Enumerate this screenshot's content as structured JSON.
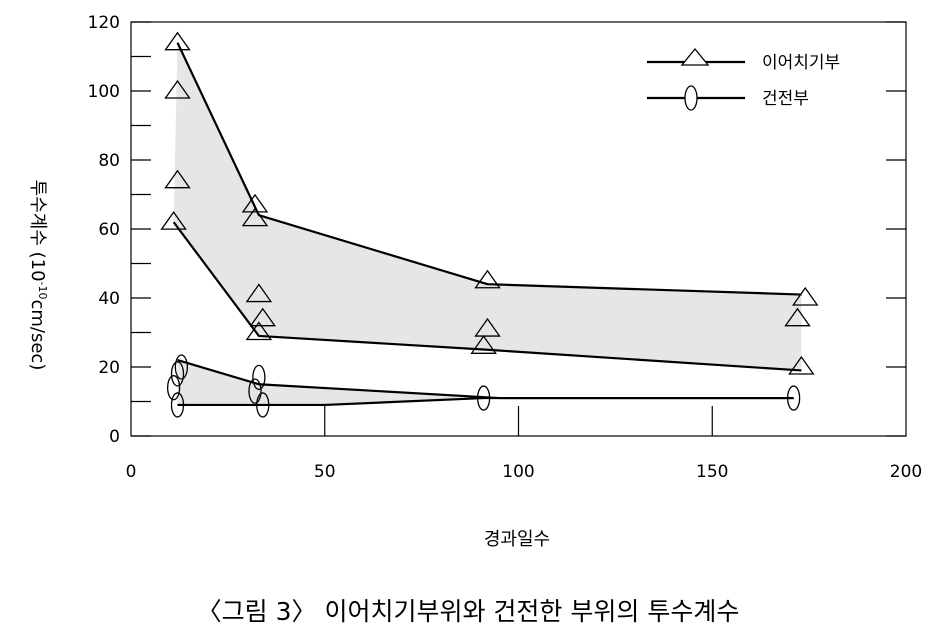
{
  "chart_data": {
    "type": "line",
    "title": "",
    "xlabel": "경과일수",
    "ylabel": "투수계수 (10⁻¹⁰cm/sec)",
    "ylabel_main": "투수계수 (10",
    "ylabel_exp": "-10",
    "ylabel_unit": "cm/sec)",
    "xlim": [
      0,
      200
    ],
    "ylim": [
      0,
      120
    ],
    "xticks": [
      0,
      50,
      100,
      150,
      200
    ],
    "yticks": [
      0,
      20,
      40,
      60,
      80,
      100,
      120
    ],
    "y_minor_ticks": [
      10,
      30,
      50,
      70,
      90,
      110
    ],
    "grid": false,
    "legend_position": "top-right",
    "shaded_band_color": "#e6e6e6",
    "line_color": "#000000",
    "series": [
      {
        "name": "이어치기부",
        "marker": "triangle",
        "points": [
          {
            "x": 12,
            "y": 114
          },
          {
            "x": 12,
            "y": 100
          },
          {
            "x": 12,
            "y": 74
          },
          {
            "x": 11,
            "y": 62
          },
          {
            "x": 32,
            "y": 67
          },
          {
            "x": 32,
            "y": 63
          },
          {
            "x": 33,
            "y": 41
          },
          {
            "x": 34,
            "y": 34
          },
          {
            "x": 33,
            "y": 30
          },
          {
            "x": 92,
            "y": 45
          },
          {
            "x": 92,
            "y": 31
          },
          {
            "x": 91,
            "y": 26
          },
          {
            "x": 174,
            "y": 40
          },
          {
            "x": 172,
            "y": 34
          },
          {
            "x": 173,
            "y": 20
          }
        ],
        "upper": {
          "x": [
            12,
            33,
            92,
            173
          ],
          "y": [
            114,
            64,
            44,
            41
          ]
        },
        "lower": {
          "x": [
            11,
            33,
            92,
            173
          ],
          "y": [
            62,
            29,
            25,
            19
          ]
        }
      },
      {
        "name": "건전부",
        "marker": "ellipse",
        "points": [
          {
            "x": 13,
            "y": 20
          },
          {
            "x": 12,
            "y": 18
          },
          {
            "x": 11,
            "y": 14
          },
          {
            "x": 12,
            "y": 9
          },
          {
            "x": 33,
            "y": 17
          },
          {
            "x": 32,
            "y": 13
          },
          {
            "x": 34,
            "y": 9
          },
          {
            "x": 91,
            "y": 11
          },
          {
            "x": 171,
            "y": 11
          }
        ],
        "upper": {
          "x": [
            12,
            33,
            95,
            171
          ],
          "y": [
            22,
            15,
            11,
            11
          ]
        },
        "lower": {
          "x": [
            12,
            33,
            50,
            91,
            171
          ],
          "y": [
            9,
            9,
            9,
            11,
            11
          ]
        }
      }
    ]
  },
  "caption": "〈그림 3〉 이어치기부위와 건전한 부위의 투수계수"
}
